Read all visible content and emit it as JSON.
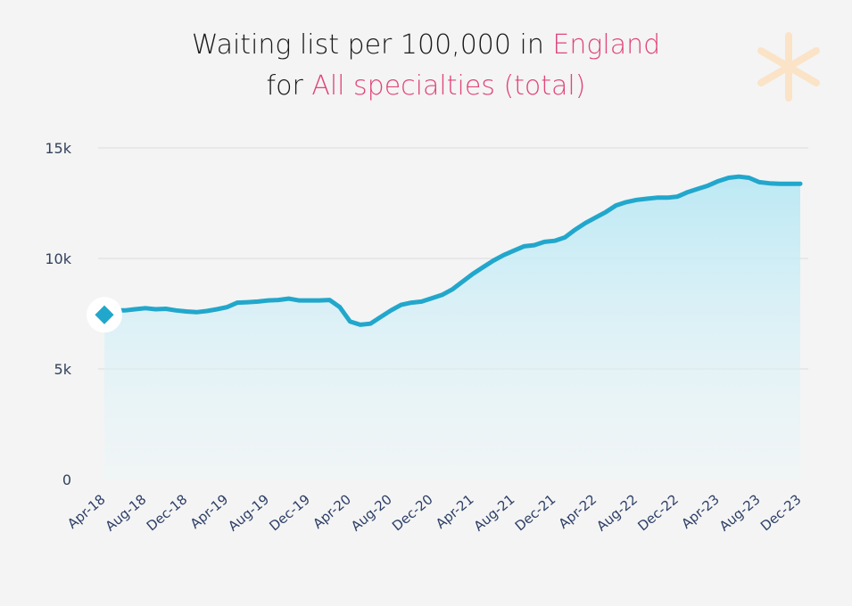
{
  "title": {
    "line1_prefix": "Waiting list per 100,000 in ",
    "line1_accent": "England",
    "line2_prefix": "for ",
    "line2_accent": "All specialties (total)"
  },
  "colors": {
    "background": "#f4f4f4",
    "title_text": "#1a1a1a",
    "accent": "#e0457b",
    "line": "#22a7cc",
    "area_top": "#b9e8f4",
    "gridline": "#dcdcdc",
    "logo": "#fbe3c8"
  },
  "logo": {
    "icon": "asterisk-icon"
  },
  "chart_data": {
    "type": "area",
    "title": "Waiting list per 100,000 in England for All specialties (total)",
    "xlabel": "",
    "ylabel": "",
    "ylim": [
      0,
      15000
    ],
    "y_ticks": [
      0,
      5000,
      10000,
      15000
    ],
    "y_tick_labels": [
      "0",
      "5k",
      "10k",
      "15k"
    ],
    "x_tick_labels": [
      "Apr-18",
      "Aug-18",
      "Dec-18",
      "Apr-19",
      "Aug-19",
      "Dec-19",
      "Apr-20",
      "Aug-20",
      "Dec-20",
      "Apr-21",
      "Aug-21",
      "Dec-21",
      "Apr-22",
      "Aug-22",
      "Dec-22",
      "Apr-23",
      "Aug-23",
      "Dec-23"
    ],
    "grid": true,
    "legend": "none",
    "highlight_marker": {
      "x": "Apr-18",
      "y": 7450
    },
    "x": [
      "Apr-18",
      "May-18",
      "Jun-18",
      "Jul-18",
      "Aug-18",
      "Sep-18",
      "Oct-18",
      "Nov-18",
      "Dec-18",
      "Jan-19",
      "Feb-19",
      "Mar-19",
      "Apr-19",
      "May-19",
      "Jun-19",
      "Jul-19",
      "Aug-19",
      "Sep-19",
      "Oct-19",
      "Nov-19",
      "Dec-19",
      "Jan-20",
      "Feb-20",
      "Mar-20",
      "Apr-20",
      "May-20",
      "Jun-20",
      "Jul-20",
      "Aug-20",
      "Sep-20",
      "Oct-20",
      "Nov-20",
      "Dec-20",
      "Jan-21",
      "Feb-21",
      "Mar-21",
      "Apr-21",
      "May-21",
      "Jun-21",
      "Jul-21",
      "Aug-21",
      "Sep-21",
      "Oct-21",
      "Nov-21",
      "Dec-21",
      "Jan-22",
      "Feb-22",
      "Mar-22",
      "Apr-22",
      "May-22",
      "Jun-22",
      "Jul-22",
      "Aug-22",
      "Sep-22",
      "Oct-22",
      "Nov-22",
      "Dec-22",
      "Jan-23",
      "Feb-23",
      "Mar-23",
      "Apr-23",
      "May-23",
      "Jun-23",
      "Jul-23",
      "Aug-23",
      "Sep-23",
      "Oct-23",
      "Nov-23",
      "Dec-23"
    ],
    "values": [
      7450,
      7650,
      7650,
      7700,
      7750,
      7700,
      7720,
      7650,
      7600,
      7570,
      7620,
      7700,
      7800,
      8000,
      8020,
      8050,
      8100,
      8120,
      8180,
      8100,
      8100,
      8100,
      8120,
      7800,
      7150,
      7000,
      7050,
      7350,
      7650,
      7900,
      8000,
      8050,
      8200,
      8350,
      8600,
      8950,
      9300,
      9600,
      9900,
      10150,
      10350,
      10550,
      10600,
      10750,
      10800,
      10950,
      11300,
      11600,
      11850,
      12100,
      12400,
      12550,
      12650,
      12700,
      12750,
      12750,
      12800,
      13000,
      13150,
      13300,
      13500,
      13650,
      13700,
      13650,
      13450,
      13400,
      13380,
      13380,
      13380
    ]
  }
}
